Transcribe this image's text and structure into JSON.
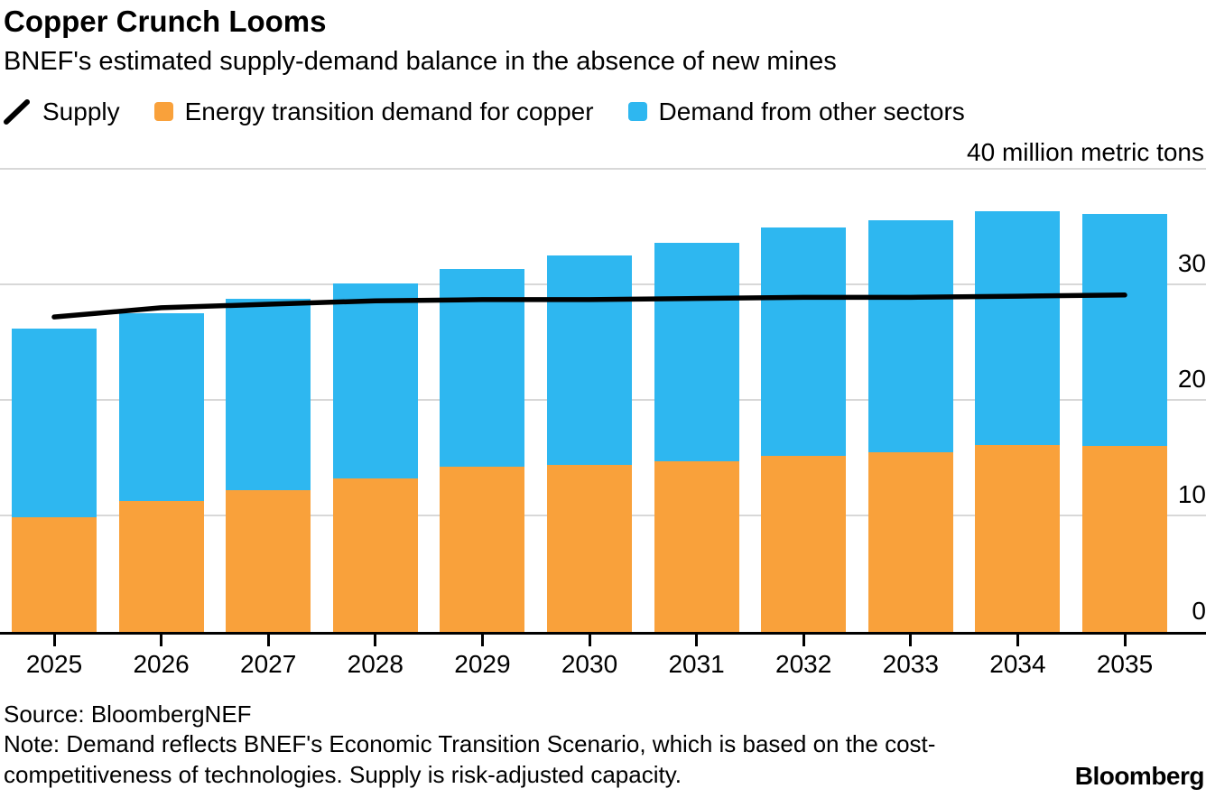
{
  "header": {
    "title": "Copper Crunch Looms",
    "subtitle": "BNEF's estimated supply-demand balance in the absence of new mines"
  },
  "legend": {
    "supply": {
      "label": "Supply",
      "color": "#000000",
      "icon": "diagonal-line"
    },
    "energy": {
      "label": "Energy transition demand for copper",
      "color": "#F9A13B",
      "icon": "square-swatch"
    },
    "other": {
      "label": "Demand from other sectors",
      "color": "#2EB7F0",
      "icon": "square-swatch"
    }
  },
  "footer": {
    "source": "Source: BloombergNEF",
    "note_line1": "Note: Demand reflects BNEF's Economic Transition Scenario, which is based on the cost-",
    "note_line2": "competitiveness of technologies. Supply is risk-adjusted capacity.",
    "logo": "Bloomberg"
  },
  "chart_data": {
    "type": "bar",
    "stacked": true,
    "title": "Copper Crunch Looms",
    "subtitle": "BNEF's estimated supply-demand balance in the absence of new mines",
    "unit_label": "40 million metric tons",
    "unit": "million metric tons",
    "categories": [
      "2025",
      "2026",
      "2027",
      "2028",
      "2029",
      "2030",
      "2031",
      "2032",
      "2033",
      "2034",
      "2035"
    ],
    "series": [
      {
        "name": "Energy transition demand for copper",
        "type": "bar",
        "color": "#F9A13B",
        "values": [
          9.9,
          11.3,
          12.2,
          13.2,
          14.2,
          14.4,
          14.7,
          15.2,
          15.5,
          16.1,
          16.0
        ]
      },
      {
        "name": "Demand from other sectors",
        "type": "bar",
        "color": "#2EB7F0",
        "values": [
          16.3,
          16.2,
          16.5,
          16.9,
          17.1,
          18.1,
          18.9,
          19.7,
          20.0,
          20.2,
          20.1
        ]
      },
      {
        "name": "Supply",
        "type": "line",
        "color": "#000000",
        "values": [
          27.2,
          28.0,
          28.3,
          28.6,
          28.7,
          28.7,
          28.8,
          28.9,
          28.9,
          29.0,
          29.1
        ]
      }
    ],
    "totals_demand": [
      26.2,
      27.5,
      28.7,
      30.1,
      31.3,
      32.5,
      33.6,
      34.9,
      35.5,
      36.3,
      36.1
    ],
    "ylim": [
      0,
      40
    ],
    "y_ticks": [
      10,
      20,
      30,
      40
    ],
    "labeled_y_ticks": [
      0,
      10,
      20,
      30
    ],
    "grid": true,
    "legend_position": "top",
    "colors": {
      "grid": "#d8d8d8",
      "axis": "#000000"
    }
  }
}
